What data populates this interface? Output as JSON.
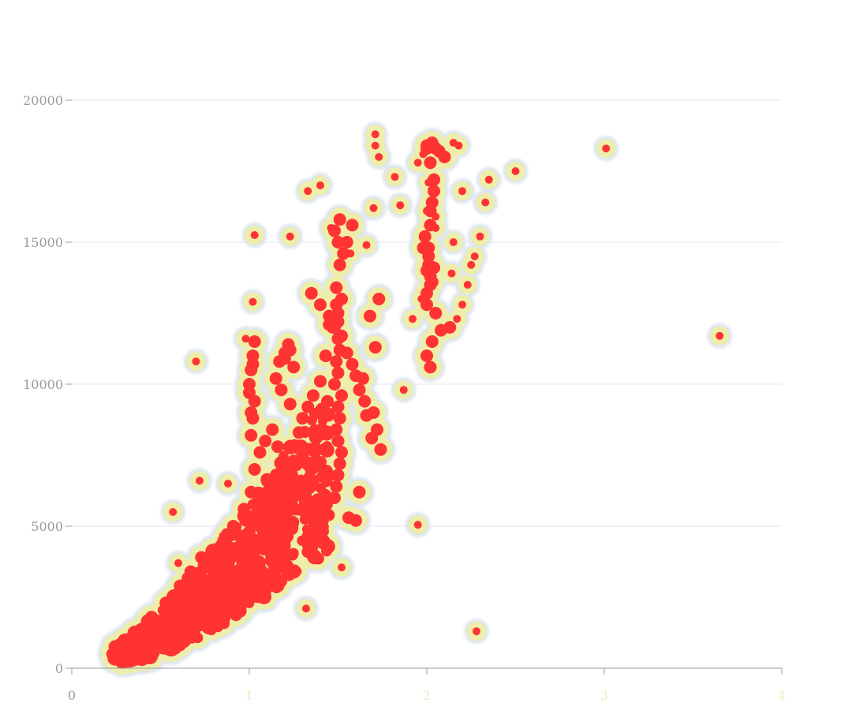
{
  "chart_data": {
    "type": "heatmap",
    "title": "",
    "xlabel": "",
    "ylabel": "",
    "xlim": [
      0,
      4
    ],
    "ylim": [
      0,
      20000
    ],
    "x_ticks": [
      "0",
      "1",
      "2",
      "3",
      "4"
    ],
    "y_ticks": [
      "0",
      "5000",
      "10000",
      "15000",
      "20000"
    ],
    "grid": "horizontal",
    "legend": "none",
    "colors": {
      "core": "#ff3333",
      "halo": "#eeeeaa",
      "rim": "#dde6ee",
      "grid": "#e6e6f0",
      "axis": "#9a9aa8",
      "y_tick_text": "#9a9aa0",
      "x_tick_text_zero": "#9a9aa0",
      "x_tick_text_other": "#ecebc6"
    },
    "x": [
      0.23,
      0.26,
      0.28,
      0.3,
      0.33,
      0.35,
      0.38,
      0.4,
      0.43,
      0.46,
      0.5,
      0.52,
      0.55,
      0.58,
      0.6,
      0.63,
      0.66,
      0.7,
      0.72,
      0.75,
      0.78,
      0.8,
      0.85,
      0.88,
      0.9,
      0.92,
      0.95,
      0.98,
      1.0,
      1.02,
      1.05,
      1.08,
      1.1,
      1.12,
      1.15,
      1.18,
      1.2,
      1.25,
      1.3,
      1.35,
      0.27,
      0.32,
      0.38,
      0.44,
      0.5,
      0.55,
      0.6,
      0.65,
      0.7,
      0.75,
      0.8,
      0.86,
      0.9,
      0.95,
      1.0,
      1.05,
      1.1,
      1.15,
      1.2,
      0.3,
      0.36,
      0.42,
      0.48,
      0.56,
      0.62,
      0.68,
      0.74,
      0.82,
      0.96,
      1.04,
      1.14,
      1.22,
      1.28,
      0.45,
      0.53,
      0.61,
      0.67,
      0.73,
      0.91,
      0.97,
      1.01,
      1.03,
      1.06,
      1.09,
      1.13,
      1.16,
      1.19,
      1.24,
      1.27,
      1.32,
      1.38,
      1.4,
      1.01,
      1.02,
      1.03,
      1.0,
      1.01,
      1.02,
      1.03,
      1.01,
      1.0,
      1.02,
      1.15,
      1.17,
      1.2,
      1.22,
      1.25,
      1.18,
      1.23,
      1.26,
      1.48,
      1.49,
      1.5,
      1.51,
      1.52,
      1.5,
      1.49,
      1.51,
      1.5,
      1.52,
      1.48,
      1.5,
      1.49,
      1.51,
      1.5,
      1.48,
      1.5,
      1.52,
      1.49,
      1.51,
      1.53,
      1.5,
      1.48,
      1.51,
      1.49,
      1.5,
      1.52,
      1.55,
      1.58,
      1.6,
      1.62,
      1.65,
      1.7,
      1.72,
      1.74,
      1.73,
      1.68,
      1.71,
      1.64,
      1.66,
      1.69,
      1.62,
      1.56,
      1.6,
      1.45,
      1.43,
      1.4,
      1.36,
      1.33,
      1.3,
      1.28,
      1.26,
      1.55,
      1.58,
      1.2,
      1.23,
      1.35,
      1.4,
      1.45,
      1.47,
      2.0,
      2.01,
      2.02,
      2.03,
      2.04,
      2.02,
      2.0,
      2.03,
      2.01,
      1.99,
      2.02,
      2.04,
      2.0,
      2.03,
      2.05,
      2.07,
      2.1,
      2.13,
      2.0,
      2.02,
      2.04,
      2.01,
      2.03,
      2.0,
      2.02,
      2.05,
      2.08,
      1.98,
      2.0,
      2.02,
      2.05,
      2.0,
      2.01,
      1.95,
      1.98,
      2.15,
      2.17,
      2.2,
      2.23,
      2.25,
      2.27,
      2.3,
      2.33,
      2.35,
      2.5,
      2.2,
      2.18,
      2.15,
      2.14,
      2.05,
      1.97,
      1.92,
      1.87,
      1.85,
      1.82,
      1.73,
      1.71,
      1.71,
      1.7,
      1.66,
      1.57,
      1.52,
      1.46,
      1.4,
      1.33,
      1.23,
      1.02,
      0.98,
      0.7,
      0.57,
      0.6,
      0.72,
      1.06,
      1.32,
      2.28,
      3.01,
      3.65,
      1.95,
      1.52,
      1.44,
      1.03,
      1.14,
      0.88,
      0.52,
      0.68,
      0.44
    ],
    "y": [
      500,
      620,
      700,
      800,
      900,
      1000,
      1100,
      1200,
      1300,
      1450,
      1600,
      1700,
      1850,
      2000,
      2150,
      2300,
      2450,
      2650,
      2800,
      2950,
      3100,
      3300,
      3500,
      3700,
      3900,
      4100,
      4300,
      4550,
      4800,
      5100,
      5400,
      5700,
      6000,
      6300,
      6600,
      6900,
      7100,
      7300,
      7500,
      7000,
      450,
      600,
      750,
      900,
      1050,
      1250,
      1450,
      1650,
      1900,
      2200,
      2500,
      2800,
      3100,
      3500,
      3900,
      4300,
      4700,
      5100,
      5500,
      900,
      1050,
      1250,
      1500,
      1800,
      2100,
      2400,
      2750,
      3150,
      3800,
      4500,
      5200,
      6000,
      6500,
      1800,
      2300,
      2900,
      3400,
      3900,
      5000,
      5600,
      6200,
      7000,
      7600,
      8000,
      8400,
      7800,
      7200,
      6800,
      6400,
      6000,
      5600,
      5300,
      8200,
      8800,
      9400,
      10000,
      10500,
      11000,
      11500,
      9000,
      9700,
      10700,
      10200,
      10800,
      11100,
      11400,
      10600,
      9800,
      9300,
      5600,
      6000,
      6400,
      6800,
      7200,
      7600,
      8000,
      8400,
      8800,
      9200,
      9600,
      10000,
      10400,
      10800,
      11200,
      11600,
      12000,
      12500,
      13000,
      13400,
      14200,
      14600,
      15000,
      15400,
      15800,
      12800,
      12200,
      11700,
      11100,
      10700,
      10300,
      9800,
      9400,
      9000,
      8400,
      7700,
      13000,
      12400,
      11300,
      10200,
      8900,
      8100,
      6200,
      5300,
      5200,
      12100,
      11000,
      10100,
      9600,
      9200,
      8800,
      8300,
      7800,
      15000,
      15600,
      10900,
      11200,
      13200,
      12800,
      12400,
      12000,
      14000,
      14800,
      15600,
      16400,
      17200,
      17800,
      18300,
      13600,
      14200,
      15200,
      16100,
      16800,
      18400,
      18500,
      18300,
      18200,
      18000,
      12000,
      12800,
      13500,
      14100,
      14500,
      11500,
      11000,
      10600,
      12500,
      11900,
      14800,
      13200,
      13800,
      15500,
      16100,
      17100,
      17800,
      18100,
      18500,
      12300,
      12800,
      13500,
      14200,
      14500,
      15200,
      16400,
      17200,
      17500,
      16800,
      18400,
      15000,
      13900,
      15900,
      13000,
      12300,
      9800,
      16300,
      17300,
      18000,
      18800,
      18400,
      16200,
      14900,
      14600,
      15800,
      15500,
      17000,
      16800,
      15200,
      12900,
      11600,
      10800,
      5500,
      3700,
      6600,
      4300,
      2100,
      1300,
      18300,
      11700,
      5050,
      3550,
      12100,
      15250,
      3100,
      6500,
      900,
      1200,
      800
    ],
    "hot_band": {
      "x_from": 0.24,
      "x_to": 1.45,
      "y_center_at_x_from": 500,
      "y_center_at_x_to": 7000,
      "density": 600
    }
  }
}
